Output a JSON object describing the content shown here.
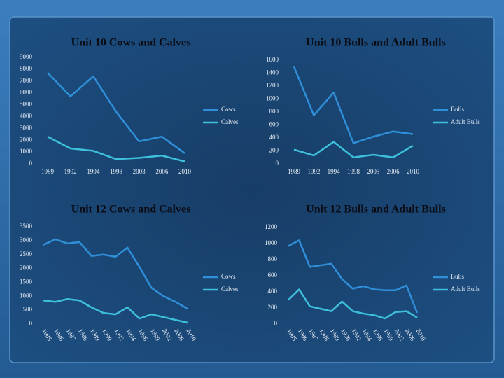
{
  "chart_data": [
    {
      "type": "line",
      "title": "Unit 10 Cows and Calves",
      "categories": [
        "1989",
        "1992",
        "1994",
        "1998",
        "2003",
        "2006",
        "2010"
      ],
      "series": [
        {
          "name": "Cows",
          "color": "#2f8fd8",
          "values": [
            7700,
            5700,
            7400,
            4400,
            1900,
            2300,
            900
          ]
        },
        {
          "name": "Calves",
          "color": "#3ec0dc",
          "values": [
            2300,
            1300,
            1100,
            400,
            500,
            700,
            200
          ]
        }
      ],
      "ylim": [
        0,
        9000
      ],
      "yticks": [
        0,
        1000,
        2000,
        3000,
        4000,
        5000,
        6000,
        7000,
        8000,
        9000
      ],
      "legend": "right"
    },
    {
      "type": "line",
      "title": "Unit 10 Bulls and Adult Bulls",
      "categories": [
        "1989",
        "1992",
        "1994",
        "1998",
        "2003",
        "2006",
        "2010"
      ],
      "series": [
        {
          "name": "Bulls",
          "color": "#2f8fd8",
          "values": [
            1500,
            750,
            1100,
            320,
            420,
            500,
            460
          ]
        },
        {
          "name": "Adult Bulls",
          "color": "#3ec0dc",
          "values": [
            220,
            130,
            340,
            100,
            140,
            100,
            280
          ]
        }
      ],
      "ylim": [
        0,
        1600
      ],
      "yticks": [
        0,
        200,
        400,
        600,
        800,
        1000,
        1200,
        1400,
        1600
      ],
      "legend": "right"
    },
    {
      "type": "line",
      "title": "Unit 12 Cows and Calves",
      "categories": [
        "1985",
        "1986",
        "1987",
        "1988",
        "1989",
        "1990",
        "1992",
        "1994",
        "1996",
        "1999",
        "2002",
        "2006",
        "2010"
      ],
      "series": [
        {
          "name": "Cows",
          "color": "#2f8fd8",
          "values": [
            2850,
            3050,
            2900,
            2950,
            2450,
            2500,
            2420,
            2750,
            2050,
            1300,
            1000,
            800,
            550
          ]
        },
        {
          "name": "Calves",
          "color": "#3ec0dc",
          "values": [
            850,
            800,
            900,
            850,
            600,
            400,
            350,
            600,
            200,
            350,
            250,
            150,
            50
          ]
        }
      ],
      "ylim": [
        0,
        3500
      ],
      "yticks": [
        0,
        500,
        1000,
        1500,
        2000,
        2500,
        3000,
        3500
      ],
      "legend": "right"
    },
    {
      "type": "line",
      "title": "Unit 12 Bulls and Adult Bulls",
      "categories": [
        "1985",
        "1986",
        "1987",
        "1988",
        "1989",
        "1990",
        "1992",
        "1994",
        "1996",
        "1999",
        "2002",
        "2006",
        "2010"
      ],
      "series": [
        {
          "name": "Bulls",
          "color": "#2f8fd8",
          "values": [
            970,
            1040,
            710,
            730,
            750,
            560,
            440,
            470,
            430,
            420,
            420,
            480,
            140
          ]
        },
        {
          "name": "Adult Bulls",
          "color": "#3ec0dc",
          "values": [
            300,
            430,
            220,
            190,
            160,
            280,
            160,
            130,
            110,
            70,
            150,
            160,
            80
          ]
        }
      ],
      "ylim": [
        0,
        1200
      ],
      "yticks": [
        0,
        200,
        400,
        600,
        800,
        1000,
        1200
      ],
      "legend": "right"
    }
  ]
}
